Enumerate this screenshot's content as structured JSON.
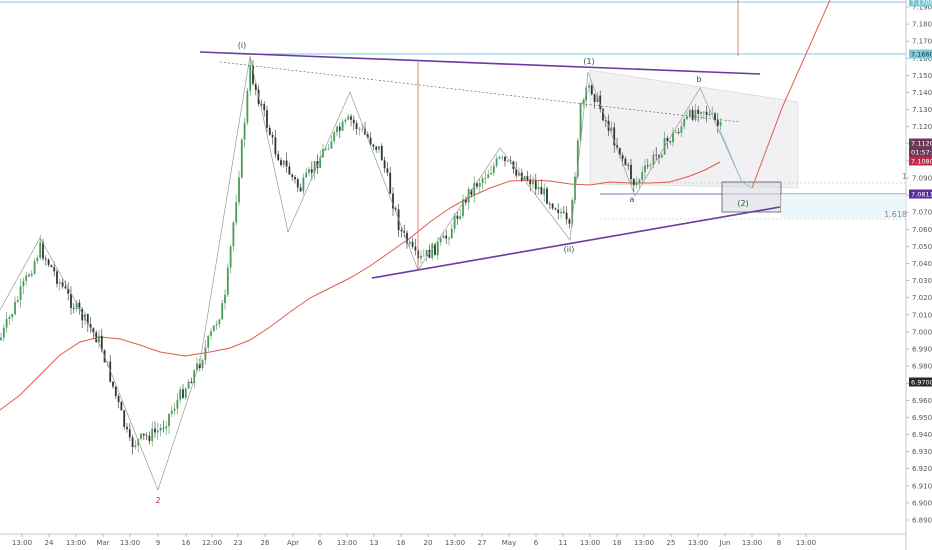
{
  "chart_data": {
    "type": "candlestick",
    "y_ticks": [
      "7.19000",
      "7.18000",
      "7.17000",
      "7.16000",
      "7.15000",
      "7.14000",
      "7.13000",
      "7.12000",
      "7.11000",
      "7.10000",
      "7.09000",
      "7.08000",
      "7.07000",
      "7.06000",
      "7.05000",
      "7.04000",
      "7.03000",
      "7.02000",
      "7.01000",
      "7.00000",
      "6.99000",
      "6.98000",
      "6.97000",
      "6.96000",
      "6.95000",
      "6.94000",
      "6.93000",
      "6.92000",
      "6.91000",
      "6.90000",
      "6.89000"
    ],
    "x_ticks": [
      "13:00",
      "24",
      "13:00",
      "Mar",
      "13:00",
      "9",
      "16",
      "12:00",
      "23",
      "26",
      "Apr",
      "6",
      "13:00",
      "13",
      "16",
      "20",
      "13:00",
      "27",
      "May",
      "6",
      "11",
      "13:00",
      "18",
      "13:00",
      "25",
      "13:00",
      "Jun",
      "13:00",
      "8",
      "13:00"
    ],
    "price_labels": [
      {
        "text": "7.17000",
        "kind": "top"
      },
      {
        "text": "7.16600",
        "kind": "level"
      },
      {
        "text": "7.11200",
        "kind": "last"
      },
      {
        "text": "01:57:56",
        "kind": "timer"
      },
      {
        "text": "7.10800",
        "kind": "ma"
      },
      {
        "text": "7.08112",
        "kind": "target"
      },
      {
        "text": "6.97000",
        "kind": "low"
      }
    ],
    "wave_labels": [
      {
        "text": "(i)",
        "color": "#1a5c3a"
      },
      {
        "text": "(ii)",
        "color": "#1a5c3a"
      },
      {
        "text": "2",
        "color": "#c0282a"
      },
      {
        "text": "(1)",
        "color": "#1a5c3a"
      },
      {
        "text": "(2)",
        "color": "#1a5c3a"
      },
      {
        "text": "a",
        "color": "#1a5c3a"
      },
      {
        "text": "b",
        "color": "#1a5c3a"
      },
      {
        "text": "1",
        "color": "#888888"
      },
      {
        "text": "1.618",
        "color": "#888888"
      }
    ],
    "colors": {
      "up": "#4a9a5a",
      "down": "#333333",
      "ma": "#e05a4a",
      "trend": "#6a3aa0",
      "projection": "#e06050",
      "level": "#7ac8d8"
    }
  }
}
